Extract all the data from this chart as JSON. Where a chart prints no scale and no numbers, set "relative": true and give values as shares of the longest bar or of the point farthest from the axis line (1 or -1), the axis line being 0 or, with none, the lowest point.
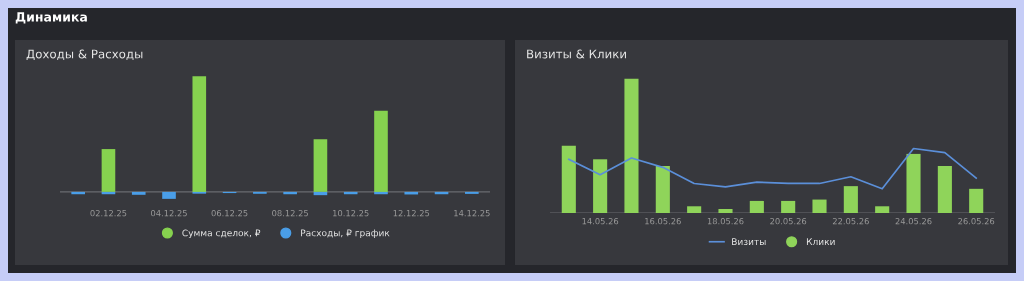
{
  "chart_data": [
    {
      "type": "bar",
      "title": "Доходы & Расходы",
      "annotations": [
        "Динамика"
      ],
      "relative": true,
      "legend": "bottom",
      "categories": [
        null,
        "02.12.25",
        null,
        "04.12.25",
        null,
        "06.12.25",
        null,
        "08.12.25",
        null,
        "10.12.25",
        null,
        "12.12.25",
        null,
        "14.12.25"
      ],
      "series": [
        {
          "name": "Сумма сделок, ₽",
          "color": "#86d24f",
          "values": [
            null,
            0.37,
            null,
            null,
            1.0,
            null,
            null,
            null,
            0.455,
            null,
            0.7,
            null,
            null,
            null
          ]
        },
        {
          "name": "Расходы, ₽ график",
          "color": "#4a9ee8",
          "values": [
            -0.02,
            -0.02,
            -0.025,
            -0.06,
            -0.015,
            -0.01,
            -0.016,
            -0.02,
            -0.028,
            -0.02,
            -0.02,
            -0.022,
            -0.02,
            -0.017
          ]
        }
      ]
    },
    {
      "type": "bar",
      "title": "Визиты & Клики",
      "relative": true,
      "legend": "bottom",
      "categories": [
        null,
        "14.05.26",
        null,
        "16.05.26",
        null,
        "18.05.26",
        null,
        "20.05.26",
        null,
        "22.05.26",
        null,
        "24.05.26",
        null,
        "26.05.26"
      ],
      "series": [
        {
          "name": "Визиты",
          "type": "line",
          "color": "#5b8fd9",
          "values": [
            0.4,
            0.285,
            0.41,
            0.34,
            0.22,
            0.195,
            0.23,
            0.22,
            0.22,
            0.27,
            0.18,
            0.48,
            0.45,
            0.26
          ]
        },
        {
          "name": "Клики",
          "type": "bar",
          "color": "#8fd45a",
          "values": [
            0.5,
            0.4,
            1.0,
            0.35,
            0.05,
            0.03,
            0.09,
            0.09,
            0.1,
            0.2,
            0.05,
            0.44,
            0.35,
            0.18
          ]
        }
      ]
    }
  ]
}
